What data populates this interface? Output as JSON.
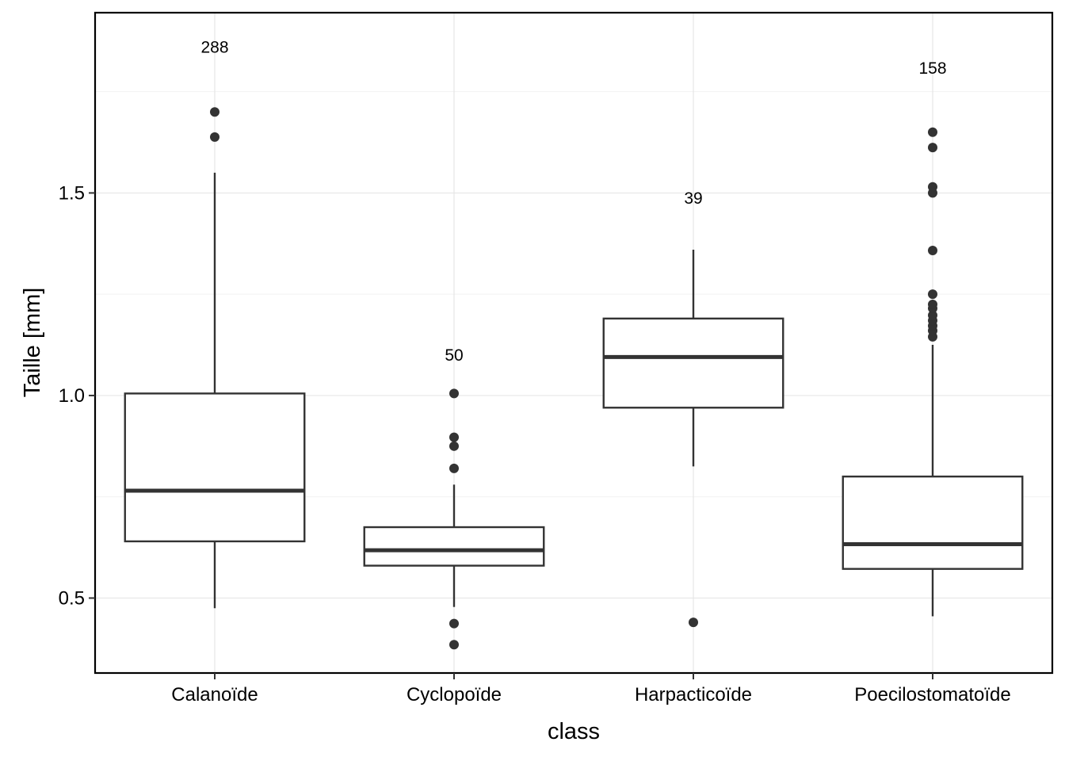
{
  "chart_data": {
    "type": "box",
    "xlabel": "class",
    "ylabel": "Taille  [mm]",
    "ylim": [
      0.315,
      1.945
    ],
    "yticks": [
      0.5,
      1.0,
      1.5
    ],
    "ytick_labels": [
      "0.5",
      "1.0",
      "1.5"
    ],
    "grid": true,
    "categories": [
      "Calanoïde",
      "Cyclopoïde",
      "Harpacticoïde",
      "Poecilostomatoïde"
    ],
    "boxes": [
      {
        "category": "Calanoïde",
        "count_label": "288",
        "count_y": 1.86,
        "q1": 0.64,
        "median": 0.765,
        "q3": 1.005,
        "whisker_low": 0.475,
        "whisker_high": 1.55,
        "outliers": [
          1.638,
          1.7
        ]
      },
      {
        "category": "Cyclopoïde",
        "count_label": "50",
        "count_y": 1.1,
        "q1": 0.58,
        "median": 0.618,
        "q3": 0.675,
        "whisker_low": 0.478,
        "whisker_high": 0.78,
        "outliers": [
          0.385,
          0.437,
          0.82,
          0.875,
          0.897,
          1.005
        ]
      },
      {
        "category": "Harpacticoïde",
        "count_label": "39",
        "count_y": 1.487,
        "q1": 0.97,
        "median": 1.095,
        "q3": 1.19,
        "whisker_low": 0.825,
        "whisker_high": 1.36,
        "outliers": [
          0.44
        ]
      },
      {
        "category": "Poecilostomatoïde",
        "count_label": "158",
        "count_y": 1.808,
        "q1": 0.572,
        "median": 0.633,
        "q3": 0.8,
        "whisker_low": 0.455,
        "whisker_high": 1.125,
        "outliers": [
          1.145,
          1.16,
          1.172,
          1.185,
          1.198,
          1.215,
          1.225,
          1.25,
          1.358,
          1.5,
          1.515,
          1.612,
          1.65
        ]
      }
    ]
  }
}
